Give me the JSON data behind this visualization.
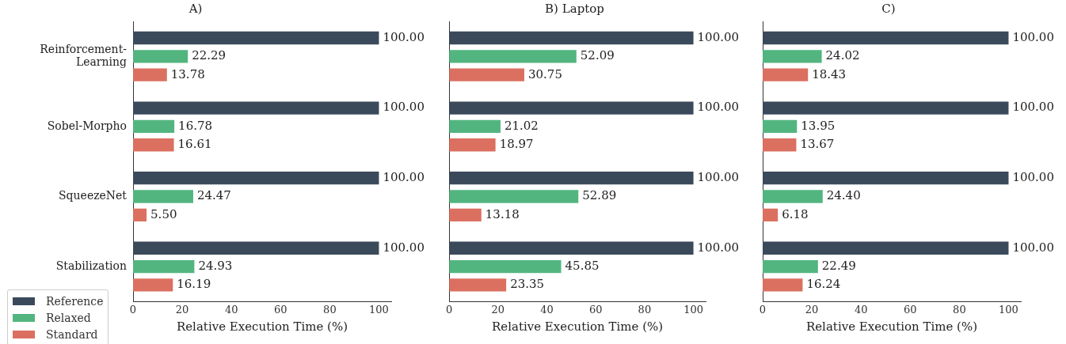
{
  "chart_data": [
    {
      "type": "bar",
      "orientation": "horizontal",
      "title": "A)",
      "xlabel": "Relative Execution Time (%)",
      "categories": [
        "Reinforcement-Learning",
        "Sobel-Morpho",
        "SqueezeNet",
        "Stabilization"
      ],
      "xlim": [
        0,
        105
      ],
      "xticks": [
        0,
        20,
        40,
        60,
        80,
        100
      ],
      "legend": "bottom left",
      "series": [
        {
          "name": "Reference",
          "color": "#3b4a5b",
          "values": [
            100,
            100,
            100,
            100
          ],
          "value_labels": [
            "100.00",
            "100.00",
            "100.00",
            "100.00"
          ]
        },
        {
          "name": "Relaxed",
          "color": "#52b57f",
          "values": [
            22.29,
            16.78,
            24.47,
            24.93
          ],
          "value_labels": [
            "22.29",
            "16.78",
            "24.47",
            "24.93"
          ]
        },
        {
          "name": "Standard",
          "color": "#db7060",
          "values": [
            13.78,
            16.61,
            5.5,
            16.19
          ],
          "value_labels": [
            "13.78",
            "16.61",
            "5.50",
            "16.19"
          ]
        }
      ]
    },
    {
      "type": "bar",
      "orientation": "horizontal",
      "title": "B) Laptop",
      "xlabel": "Relative Execution Time (%)",
      "categories": [
        null,
        null,
        null,
        null
      ],
      "xlim": [
        0,
        105
      ],
      "xticks": [
        0,
        20,
        40,
        60,
        80,
        100
      ],
      "tick_labels": "x",
      "series": [
        {
          "color": "#3b4a5b",
          "values": [
            100,
            100,
            100,
            100
          ],
          "value_labels": [
            "100.00",
            "100.00",
            "100.00",
            "100.00"
          ]
        },
        {
          "color": "#52b57f",
          "values": [
            52.09,
            21.02,
            52.89,
            45.85
          ],
          "value_labels": [
            "52.09",
            "21.02",
            "52.89",
            "45.85"
          ]
        },
        {
          "color": "#db7060",
          "values": [
            30.75,
            18.97,
            13.18,
            23.35
          ],
          "value_labels": [
            "30.75",
            "18.97",
            "13.18",
            "23.35"
          ]
        }
      ]
    },
    {
      "type": "bar",
      "orientation": "horizontal",
      "title": "C)",
      "xlabel": "Relative Execution Time (%)",
      "categories": [
        null,
        null,
        null,
        null
      ],
      "xlim": [
        0,
        105
      ],
      "xticks": [
        0,
        20,
        40,
        60,
        80,
        100
      ],
      "tick_labels": "x",
      "series": [
        {
          "color": "#3b4a5b",
          "values": [
            100,
            100,
            100,
            100
          ],
          "value_labels": [
            "100.00",
            "100.00",
            "100.00",
            "100.00"
          ]
        },
        {
          "color": "#52b57f",
          "values": [
            24.02,
            13.95,
            24.4,
            22.49
          ],
          "value_labels": [
            "24.02",
            "13.95",
            "24.40",
            "22.49"
          ]
        },
        {
          "color": "#db7060",
          "values": [
            18.43,
            13.67,
            6.18,
            16.24
          ],
          "value_labels": [
            "18.43",
            "13.67",
            "6.18",
            "16.24"
          ]
        }
      ]
    }
  ]
}
